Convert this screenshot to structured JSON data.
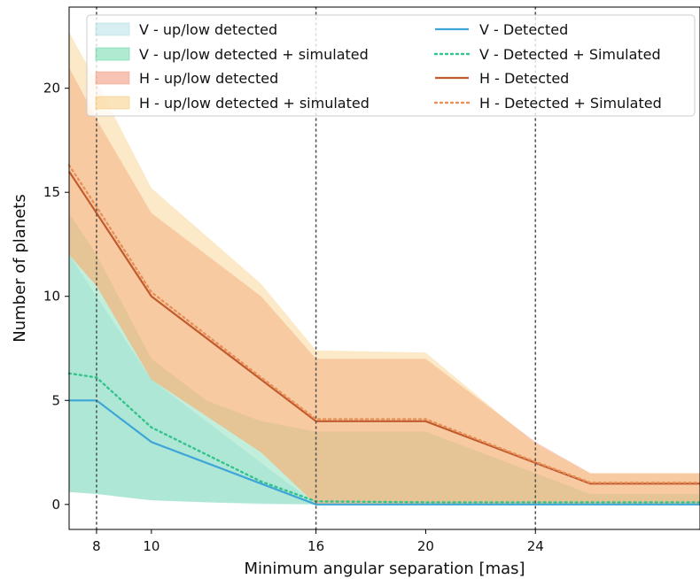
{
  "chart_data": {
    "type": "area",
    "xlabel": "Minimum angular separation [mas]",
    "ylabel": "Number of planets",
    "xlim": [
      7,
      30
    ],
    "ylim": [
      -1.2,
      23.9
    ],
    "xticks": [
      8,
      10,
      16,
      20,
      24
    ],
    "yticks": [
      0,
      5,
      10,
      15,
      20
    ],
    "vlines": [
      8,
      16,
      24
    ],
    "grid": false,
    "legend_position": "top",
    "bands": [
      {
        "name": "V - up/low detected",
        "color": "#a8dce0",
        "opacity": 0.35,
        "x": [
          7,
          8,
          10,
          12,
          14,
          16,
          20,
          26,
          30
        ],
        "upper": [
          12,
          10,
          6,
          4,
          2,
          0,
          0,
          0,
          0
        ],
        "lower": [
          0.6,
          0.5,
          0.2,
          0.1,
          0,
          0,
          0,
          0,
          0
        ]
      },
      {
        "name": "V - up/low detected + simulated",
        "color": "#4fd19a",
        "opacity": 0.35,
        "x": [
          7,
          8,
          10,
          12,
          14,
          16,
          20,
          26,
          30
        ],
        "upper": [
          14,
          12,
          7,
          5,
          4,
          3.5,
          3.5,
          0.5,
          0.5
        ],
        "lower": [
          0.6,
          0.5,
          0.2,
          0.1,
          0.05,
          0,
          0,
          0,
          0
        ]
      },
      {
        "name": "H - up/low detected",
        "color": "#f19c82",
        "opacity": 0.5,
        "x": [
          7,
          8,
          10,
          14,
          16,
          20,
          24,
          26,
          30
        ],
        "upper": [
          21,
          18.5,
          14,
          10,
          7,
          7,
          3,
          1.5,
          1.5
        ],
        "lower": [
          12,
          10.5,
          6,
          2.5,
          0,
          0,
          0,
          0,
          0
        ]
      },
      {
        "name": "H - up/low detected + simulated",
        "color": "#f7c46e",
        "opacity": 0.38,
        "x": [
          7,
          8,
          10,
          14,
          16,
          20,
          24,
          26,
          30
        ],
        "upper": [
          22.7,
          20.3,
          15.2,
          10.6,
          7.4,
          7.3,
          2.9,
          1.5,
          1.5
        ],
        "lower": [
          12,
          10.5,
          6,
          2.5,
          0,
          0,
          0,
          0,
          0
        ]
      }
    ],
    "series": [
      {
        "name": "V - Detected",
        "color": "#3ea5d8",
        "style": "solid",
        "x": [
          7,
          8,
          10,
          14,
          16,
          20,
          26,
          30
        ],
        "values": [
          5,
          5,
          3,
          1,
          0,
          0,
          0,
          0
        ]
      },
      {
        "name": "V - Detected + Simulated",
        "color": "#33c48c",
        "style": "dotted",
        "x": [
          7,
          8,
          10,
          14,
          16,
          20,
          26,
          30
        ],
        "values": [
          6.3,
          6.1,
          3.7,
          1.1,
          0.15,
          0.1,
          0.1,
          0.1
        ]
      },
      {
        "name": "H - Detected",
        "color": "#c05a2f",
        "style": "solid",
        "x": [
          7,
          8,
          10,
          14,
          16,
          20,
          24,
          26,
          30
        ],
        "values": [
          16,
          14,
          10,
          6,
          4,
          4,
          2,
          1,
          1
        ]
      },
      {
        "name": "H - Detected + Simulated",
        "color": "#e8925a",
        "style": "dotted",
        "x": [
          7,
          8,
          10,
          14,
          16,
          20,
          24,
          26,
          30
        ],
        "values": [
          16.3,
          14.3,
          10.2,
          6.1,
          4.1,
          4.1,
          2.05,
          1.05,
          1.05
        ]
      }
    ]
  }
}
